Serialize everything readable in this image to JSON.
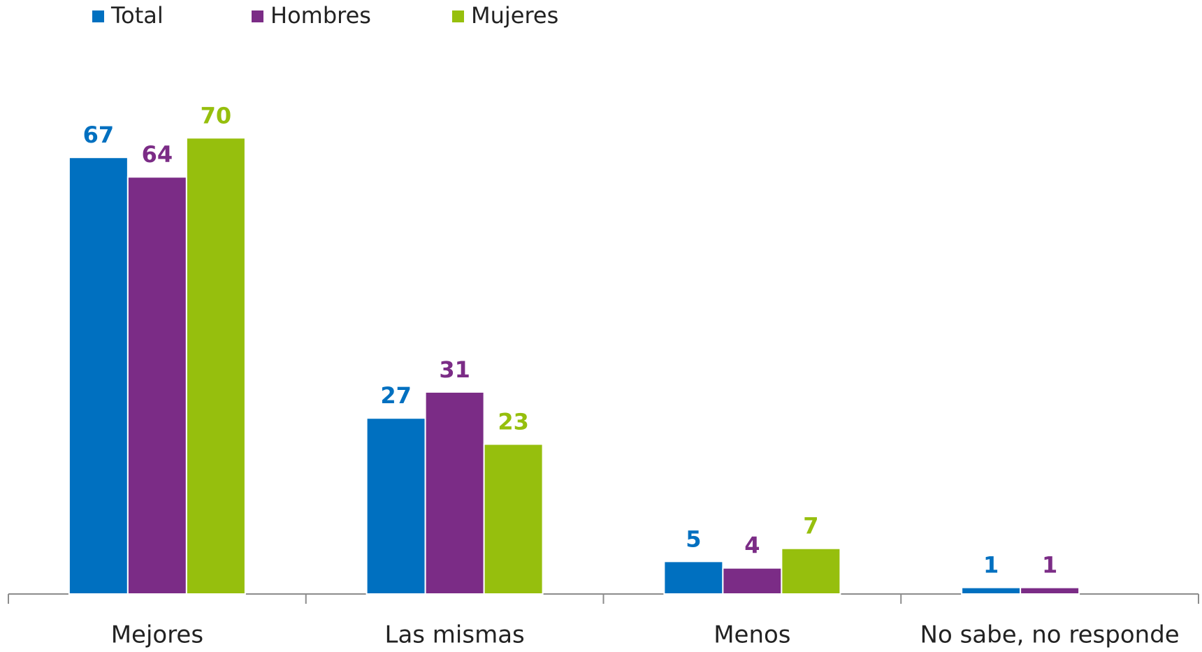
{
  "chart_data": {
    "type": "bar",
    "categories": [
      "Mejores",
      "Las mismas",
      "Menos",
      "No sabe, no responde"
    ],
    "series": [
      {
        "name": "Total",
        "color": "#0070c0",
        "values": [
          67,
          27,
          5,
          1
        ]
      },
      {
        "name": "Hombres",
        "color": "#7b2c86",
        "values": [
          64,
          31,
          4,
          1
        ]
      },
      {
        "name": "Mujeres",
        "color": "#96bf0d",
        "values": [
          70,
          23,
          7,
          null
        ]
      }
    ],
    "ylim": [
      0,
      80
    ],
    "legend": "top-left"
  }
}
